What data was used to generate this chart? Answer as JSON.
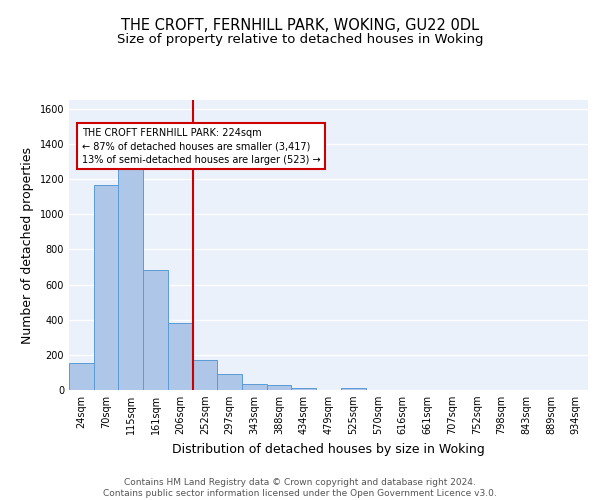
{
  "title_line1": "THE CROFT, FERNHILL PARK, WOKING, GU22 0DL",
  "title_line2": "Size of property relative to detached houses in Woking",
  "xlabel": "Distribution of detached houses by size in Woking",
  "ylabel": "Number of detached properties",
  "categories": [
    "24sqm",
    "70sqm",
    "115sqm",
    "161sqm",
    "206sqm",
    "252sqm",
    "297sqm",
    "343sqm",
    "388sqm",
    "434sqm",
    "479sqm",
    "525sqm",
    "570sqm",
    "616sqm",
    "661sqm",
    "707sqm",
    "752sqm",
    "798sqm",
    "843sqm",
    "889sqm",
    "934sqm"
  ],
  "values": [
    152,
    1165,
    1255,
    680,
    380,
    170,
    90,
    35,
    28,
    14,
    0,
    10,
    0,
    0,
    0,
    0,
    0,
    0,
    0,
    0,
    0
  ],
  "bar_color": "#aec6e8",
  "bar_edge_color": "#5b9bd5",
  "vline_x": 4.5,
  "vline_color": "#cc0000",
  "annotation_text": "THE CROFT FERNHILL PARK: 224sqm\n← 87% of detached houses are smaller (3,417)\n13% of semi-detached houses are larger (523) →",
  "annotation_box_color": "#ffffff",
  "annotation_box_edge_color": "#cc0000",
  "ylim": [
    0,
    1650
  ],
  "yticks": [
    0,
    200,
    400,
    600,
    800,
    1000,
    1200,
    1400,
    1600
  ],
  "footer_text": "Contains HM Land Registry data © Crown copyright and database right 2024.\nContains public sector information licensed under the Open Government Licence v3.0.",
  "bg_color": "#eaf1fb",
  "grid_color": "#ffffff",
  "title_fontsize": 10.5,
  "subtitle_fontsize": 9.5,
  "tick_fontsize": 7,
  "label_fontsize": 9,
  "footer_fontsize": 6.5
}
